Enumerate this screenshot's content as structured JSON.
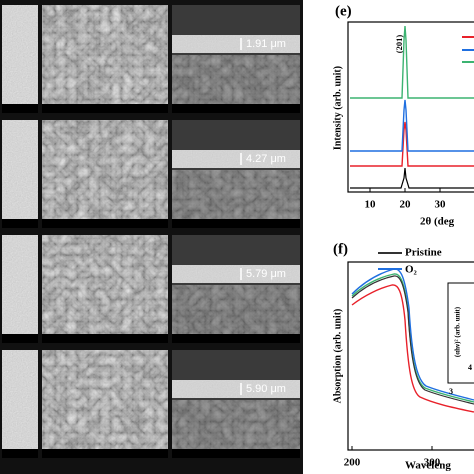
{
  "sem": {
    "thickness_labels": [
      "1.91 μm",
      "4.27 μm",
      "5.79 μm",
      "5.90 μm"
    ]
  },
  "panel_e": {
    "label": "(e)",
    "peak_label": "(201)",
    "y_axis_label": "Intensity (arb. unit)",
    "x_axis_label": "2θ (deg",
    "xticks": [
      10,
      20,
      30
    ]
  },
  "panel_f": {
    "label": "(f)",
    "y_axis_label": "Absorption (arb. unit)",
    "x_axis_label": "Waveleng",
    "xticks": [
      200,
      300
    ],
    "legend": [
      "Pristine",
      "O₂"
    ],
    "inset": {
      "y_axis_label": "(αhν)² (arb. unit)",
      "tick_labels": [
        "4",
        "3"
      ]
    }
  }
}
